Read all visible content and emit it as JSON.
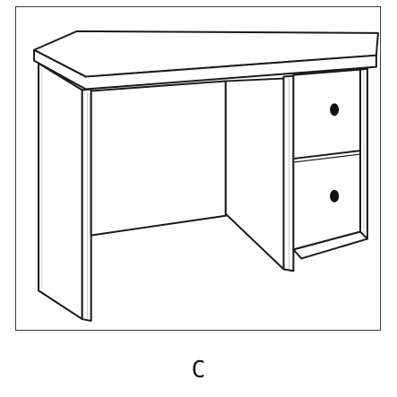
{
  "figure": {
    "caption": "C",
    "subject_icon": "desk-icon",
    "line_color": "#1a1a1a",
    "fill_color": "#ffffff"
  }
}
